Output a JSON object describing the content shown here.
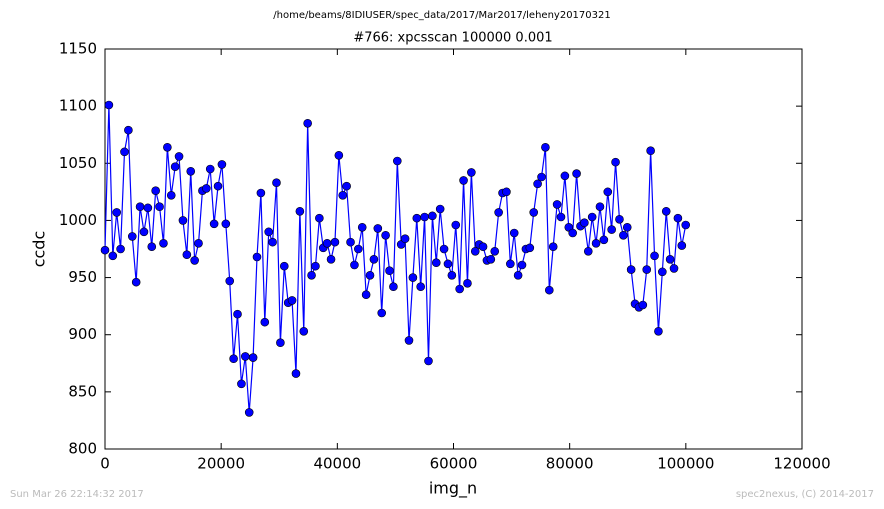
{
  "chart_data": {
    "type": "line",
    "suptitle": "/home/beams/8IDIUSER/spec_data/2017/Mar2017/leheny20170321",
    "title": "#766: xpcsscan 100000 0.001",
    "xlabel": "img_n",
    "ylabel": "ccdc",
    "footer_left": "Sun Mar 26 22:14:32 2017",
    "footer_right": "spec2nexus, (C) 2014-2017",
    "xlim": [
      0,
      120000
    ],
    "ylim": [
      800,
      1150
    ],
    "xticks": [
      0,
      20000,
      40000,
      60000,
      80000,
      100000,
      120000
    ],
    "yticks": [
      800,
      850,
      900,
      950,
      1000,
      1050,
      1100,
      1150
    ],
    "grid": false,
    "marker": "circle",
    "x": [
      0,
      671,
      1342,
      2013,
      2684,
      3355,
      4026,
      4697,
      5368,
      6039,
      6710,
      7381,
      8052,
      8723,
      9394,
      10065,
      10736,
      11407,
      12078,
      12749,
      13420,
      14091,
      14762,
      15433,
      16104,
      16775,
      17446,
      18117,
      18788,
      19459,
      20130,
      20801,
      21472,
      22143,
      22814,
      23485,
      24156,
      24827,
      25498,
      26169,
      26840,
      27511,
      28182,
      28853,
      29524,
      30195,
      30866,
      31537,
      32208,
      32879,
      33550,
      34221,
      34892,
      35563,
      36234,
      36905,
      37576,
      38247,
      38918,
      39589,
      40260,
      40931,
      41602,
      42273,
      42944,
      43615,
      44286,
      44957,
      45628,
      46299,
      46970,
      47641,
      48312,
      48983,
      49654,
      50325,
      50996,
      51667,
      52338,
      53009,
      53680,
      54351,
      55022,
      55693,
      56364,
      57035,
      57706,
      58377,
      59048,
      59719,
      60390,
      61061,
      61732,
      62403,
      63074,
      63745,
      64416,
      65087,
      65758,
      66429,
      67100,
      67771,
      68442,
      69113,
      69784,
      70455,
      71126,
      71797,
      72468,
      73139,
      73810,
      74481,
      75152,
      75823,
      76494,
      77165,
      77836,
      78507,
      79178,
      79849,
      80520,
      81191,
      81862,
      82533,
      83204,
      83875,
      84546,
      85217,
      85888,
      86559,
      87230,
      87901,
      88572,
      89243,
      89914,
      90585,
      91256,
      91927,
      92598,
      93269,
      93940,
      94611,
      95282,
      95953,
      96624,
      97295,
      97966,
      98637,
      99308,
      99979
    ],
    "series": [
      {
        "color": "#0000ff",
        "values": [
          974,
          1101,
          969,
          1007,
          975,
          1060,
          1079,
          986,
          946,
          1012,
          990,
          1011,
          977,
          1026,
          1012,
          980,
          1064,
          1022,
          1047,
          1056,
          1000,
          970,
          1043,
          965,
          980,
          1026,
          1028,
          1045,
          997,
          1030,
          1049,
          997,
          947,
          879,
          918,
          857,
          881,
          832,
          880,
          968,
          1024,
          911,
          990,
          981,
          1033,
          893,
          960,
          928,
          930,
          866,
          1008,
          903,
          1085,
          952,
          960,
          1002,
          976,
          980,
          966,
          981,
          1057,
          1022,
          1030,
          981,
          961,
          975,
          994,
          935,
          952,
          966,
          993,
          919,
          987,
          956,
          942,
          1052,
          979,
          984,
          895,
          950,
          1002,
          942,
          1003,
          877,
          1004,
          963,
          1010,
          975,
          962,
          952,
          996,
          940,
          1035,
          945,
          1042,
          973,
          979,
          977,
          965,
          966,
          973,
          1007,
          1024,
          1025,
          962,
          989,
          952,
          961,
          975,
          976,
          1007,
          1032,
          1038,
          1064,
          939,
          977,
          1014,
          1003,
          1039,
          994,
          989,
          1041,
          995,
          998,
          973,
          1003,
          980,
          1012,
          983,
          1025,
          992,
          1051,
          1001,
          987,
          994,
          957,
          927,
          924,
          926,
          957,
          1061,
          969,
          903,
          955,
          1008,
          966,
          958,
          1002,
          978,
          996
        ]
      }
    ]
  }
}
